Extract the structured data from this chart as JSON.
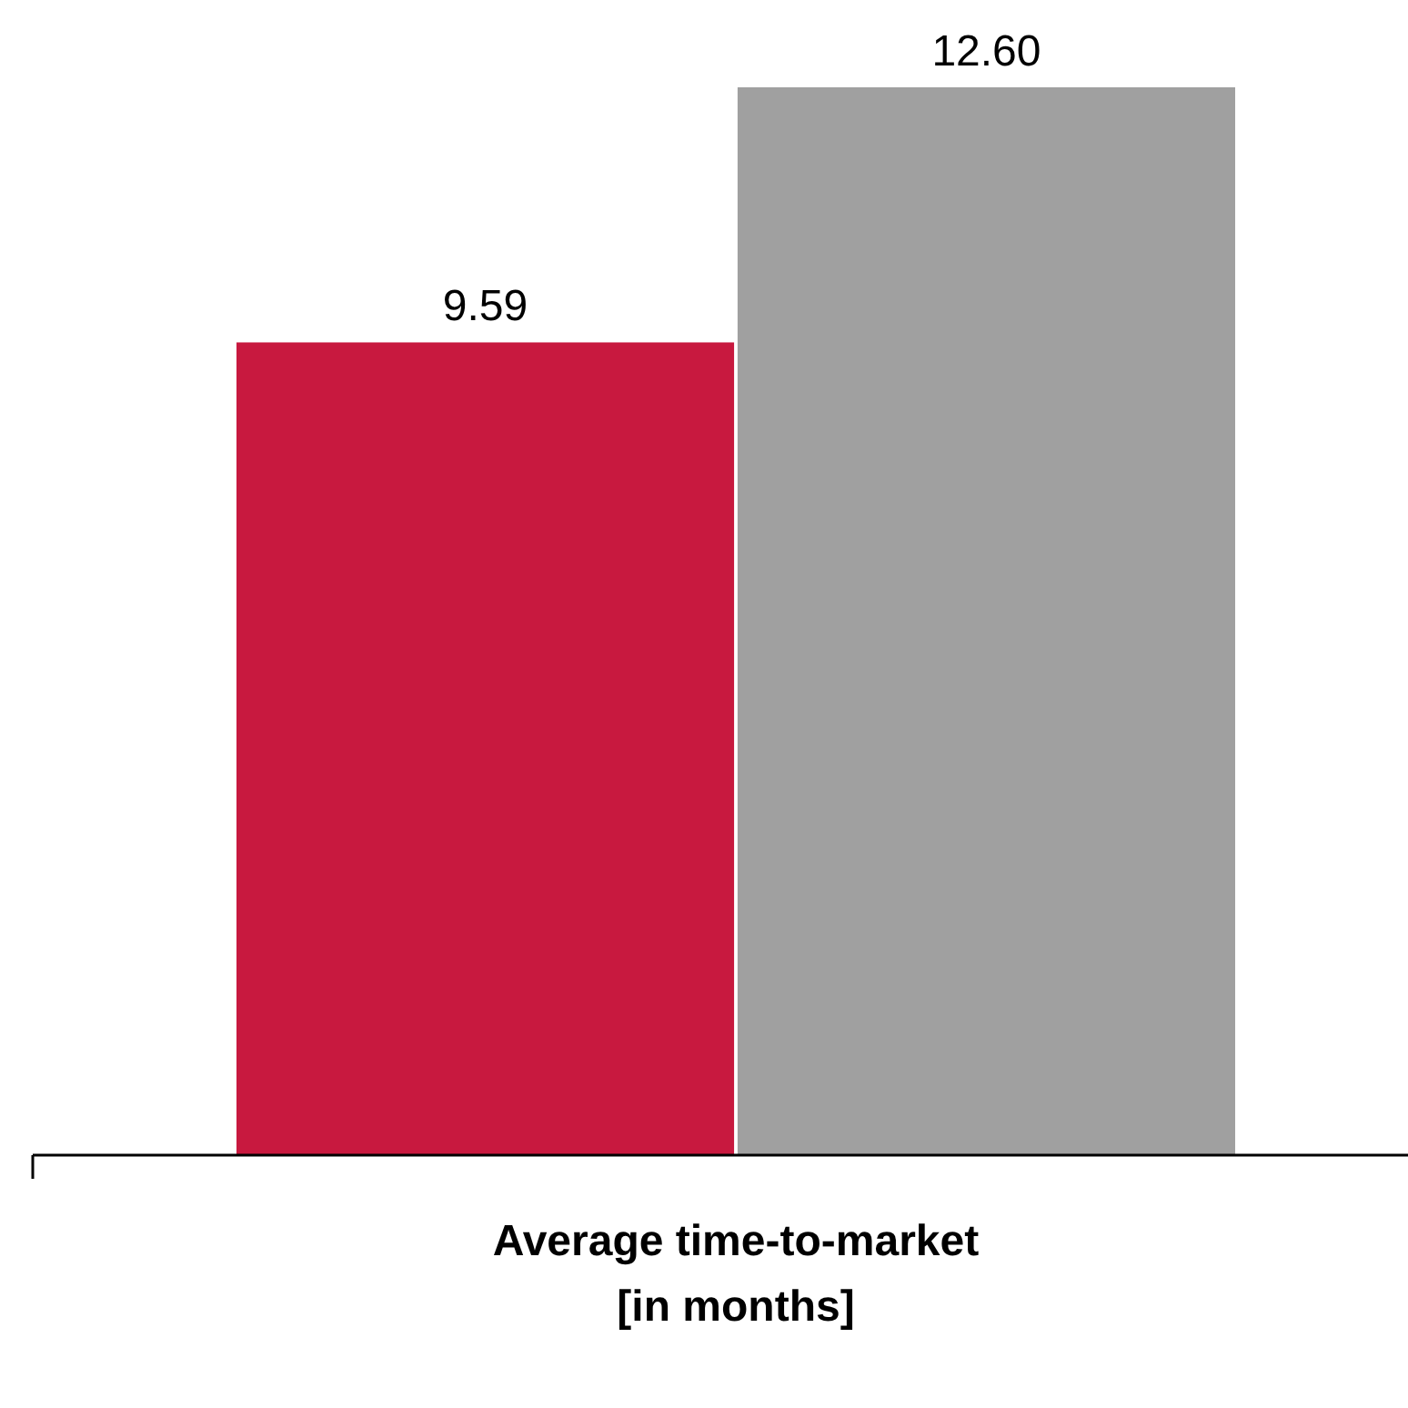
{
  "chart_data": {
    "type": "bar",
    "xlabel": "Average time-to-market\n[in months]",
    "categories": [
      null,
      null
    ],
    "values": [
      9.59,
      12.6
    ],
    "colors": [
      "#c8193f",
      "#a0a0a0"
    ],
    "value_labels": [
      "9.59",
      "12.60"
    ]
  }
}
